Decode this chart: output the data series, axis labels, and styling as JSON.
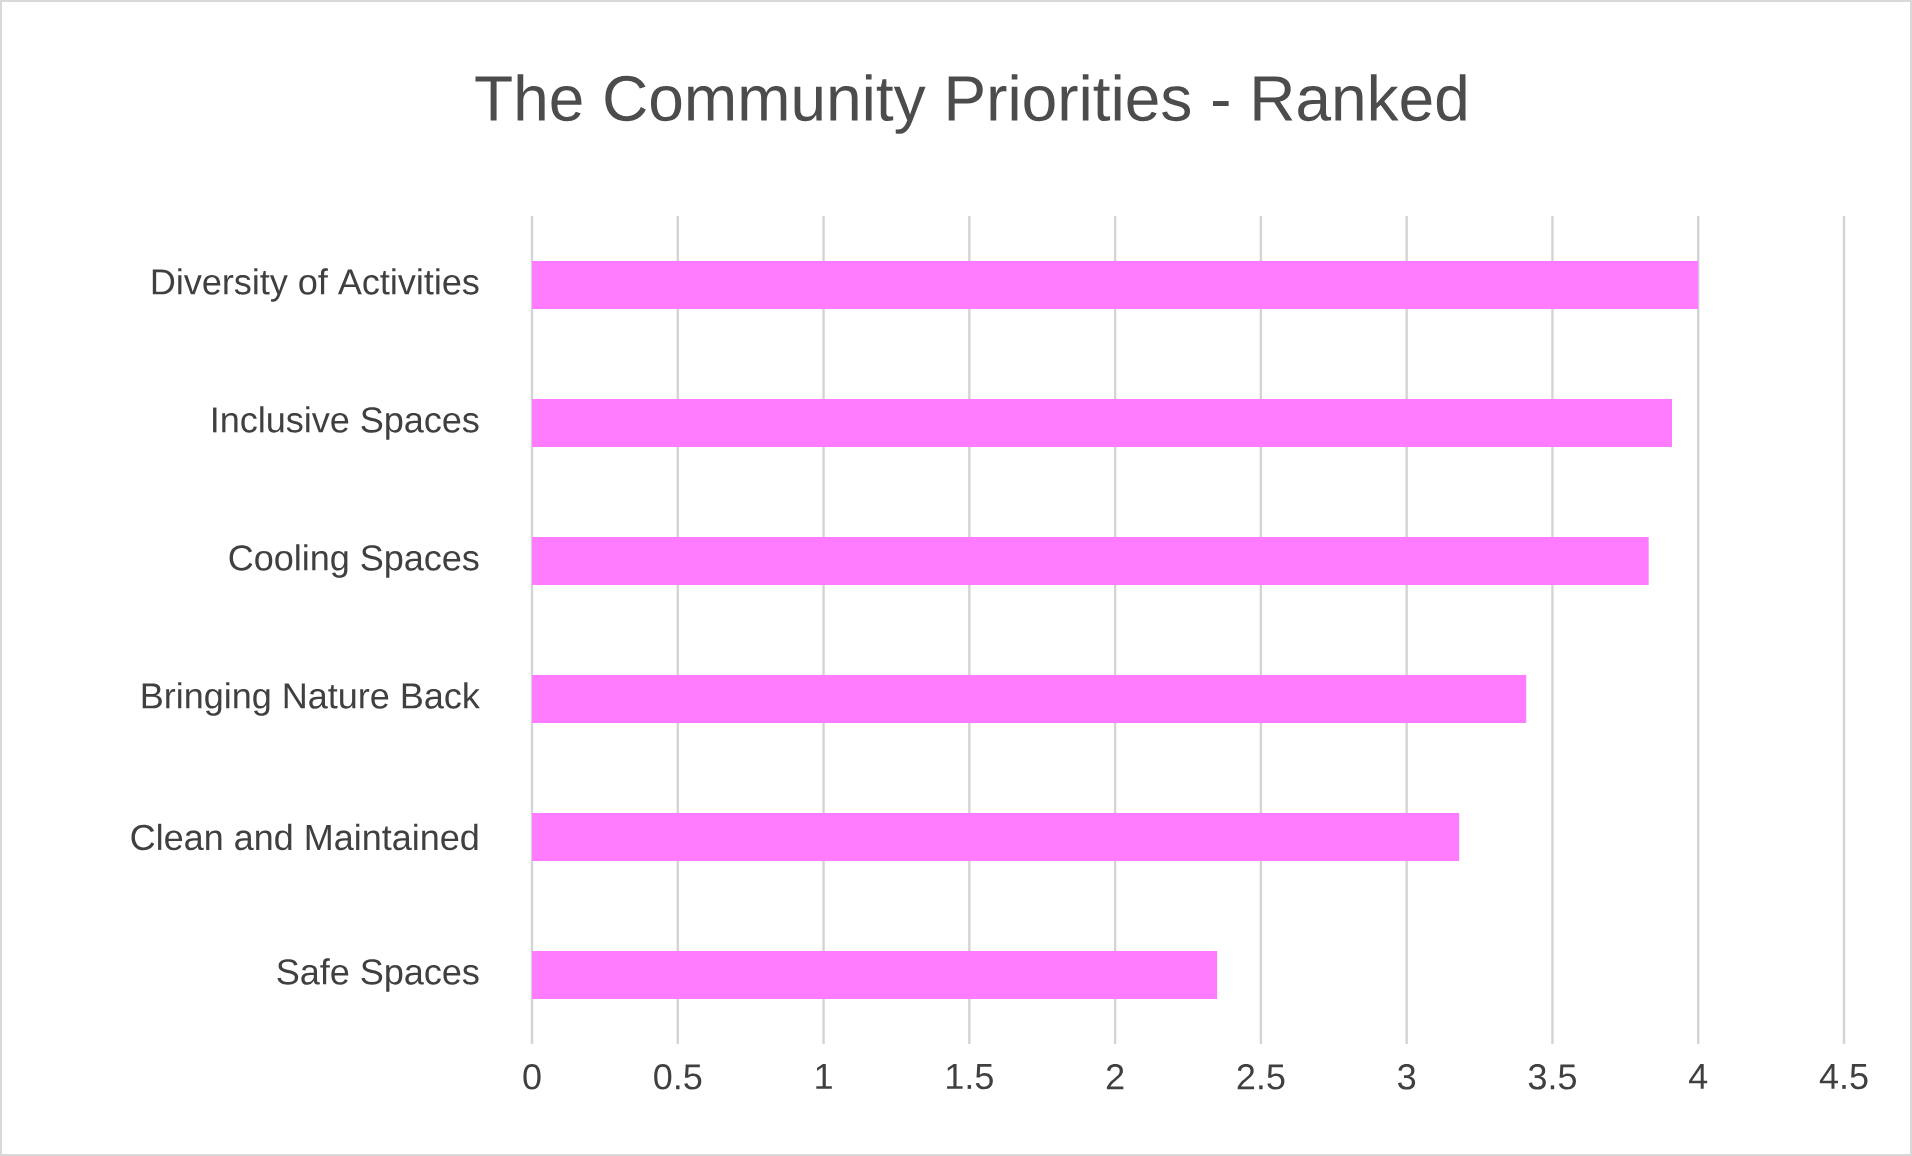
{
  "chart_data": {
    "type": "bar",
    "orientation": "horizontal",
    "title": "The Community Priorities - Ranked",
    "categories": [
      "Diversity of Activities",
      "Inclusive Spaces",
      "Cooling Spaces",
      "Bringing Nature Back",
      "Clean and Maintained",
      "Safe Spaces"
    ],
    "values": [
      4.0,
      3.91,
      3.83,
      3.41,
      3.18,
      2.35
    ],
    "color": "#ff7bff",
    "xlim": [
      0,
      4.5
    ],
    "xticks": [
      0,
      0.5,
      1,
      1.5,
      2,
      2.5,
      3,
      3.5,
      4,
      4.5
    ],
    "grid": "x"
  }
}
